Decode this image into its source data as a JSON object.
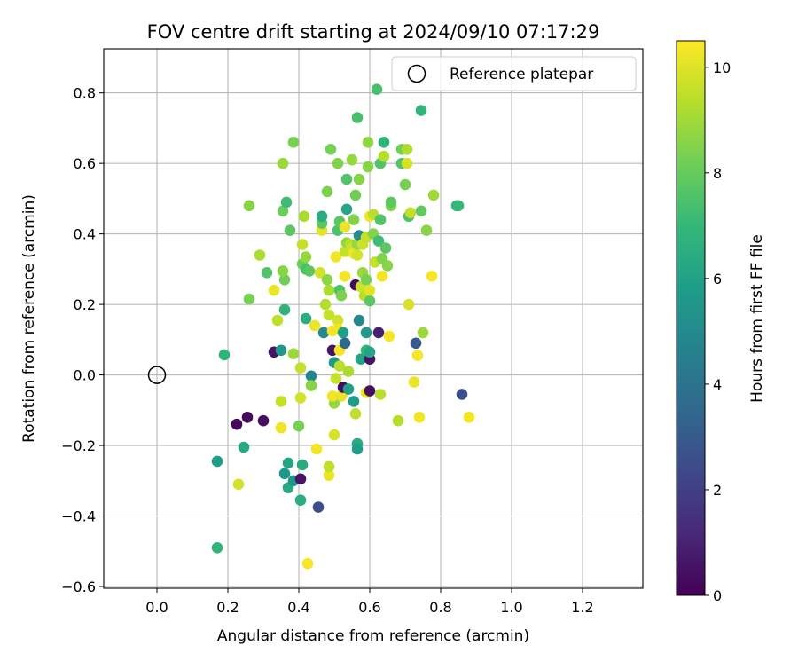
{
  "chart_data": {
    "type": "scatter",
    "title": "FOV centre drift starting at 2024/09/10 07:17:29",
    "xlabel": "Angular distance from reference (arcmin)",
    "ylabel": "Rotation from reference (arcmin)",
    "xlim": [
      -0.15,
      1.37
    ],
    "ylim": [
      -0.605,
      0.925
    ],
    "xticks": [
      0.0,
      0.2,
      0.4,
      0.6,
      0.8,
      1.0,
      1.2
    ],
    "xtick_labels": [
      "0.0",
      "0.2",
      "0.4",
      "0.6",
      "0.8",
      "1.0",
      "1.2"
    ],
    "yticks": [
      -0.6,
      -0.4,
      -0.2,
      0.0,
      0.2,
      0.4,
      0.6,
      0.8
    ],
    "ytick_labels": [
      "−0.6",
      "−0.4",
      "−0.2",
      "0.0",
      "0.2",
      "0.4",
      "0.6",
      "0.8"
    ],
    "grid": true,
    "legend": {
      "position": "top-right",
      "entries": [
        {
          "label": "Reference platepar",
          "marker": "open-circle"
        }
      ]
    },
    "reference_point": {
      "x": 0.0,
      "y": 0.0
    },
    "colorbar": {
      "label": "Hours from first FF file",
      "colormap": "viridis",
      "range": [
        0,
        10.5
      ],
      "ticks": [
        0,
        2,
        4,
        6,
        8,
        10
      ],
      "tick_labels": [
        "0",
        "2",
        "4",
        "6",
        "8",
        "10"
      ]
    },
    "series": [
      {
        "points": [
          [
            0.17,
            -0.245,
            5.8
          ],
          [
            0.17,
            -0.49,
            6.8
          ],
          [
            0.19,
            0.057,
            6.8
          ],
          [
            0.245,
            -0.205,
            6.3
          ],
          [
            0.225,
            -0.14,
            0.2
          ],
          [
            0.255,
            -0.12,
            0.3
          ],
          [
            0.3,
            -0.13,
            0.4
          ],
          [
            0.23,
            -0.31,
            9.8
          ],
          [
            0.26,
            0.215,
            8.3
          ],
          [
            0.26,
            0.48,
            8.6
          ],
          [
            0.29,
            0.34,
            9.2
          ],
          [
            0.31,
            0.29,
            7.6
          ],
          [
            0.33,
            0.24,
            10.2
          ],
          [
            0.34,
            0.155,
            9.5
          ],
          [
            0.33,
            0.065,
            0.6
          ],
          [
            0.35,
            0.07,
            5.6
          ],
          [
            0.35,
            -0.075,
            9.6
          ],
          [
            0.35,
            -0.15,
            10.3
          ],
          [
            0.36,
            0.185,
            6.8
          ],
          [
            0.36,
            0.27,
            8.2
          ],
          [
            0.355,
            0.295,
            8.6
          ],
          [
            0.355,
            0.465,
            8.1
          ],
          [
            0.365,
            0.49,
            7.2
          ],
          [
            0.355,
            0.6,
            8.9
          ],
          [
            0.385,
            0.66,
            8.3
          ],
          [
            0.375,
            0.41,
            7.8
          ],
          [
            0.36,
            -0.28,
            5.6
          ],
          [
            0.37,
            -0.25,
            6.1
          ],
          [
            0.37,
            -0.32,
            6.3
          ],
          [
            0.385,
            -0.3,
            5.5
          ],
          [
            0.385,
            0.06,
            8.9
          ],
          [
            0.4,
            -0.145,
            8.3
          ],
          [
            0.405,
            -0.295,
            0.6
          ],
          [
            0.41,
            -0.255,
            6.4
          ],
          [
            0.405,
            -0.355,
            6.5
          ],
          [
            0.405,
            -0.065,
            9.8
          ],
          [
            0.405,
            0.02,
            9.6
          ],
          [
            0.41,
            0.315,
            8.1
          ],
          [
            0.41,
            0.37,
            9.6
          ],
          [
            0.415,
            0.45,
            9.2
          ],
          [
            0.42,
            0.3,
            7.4
          ],
          [
            0.42,
            0.335,
            8.8
          ],
          [
            0.42,
            0.16,
            6.5
          ],
          [
            0.425,
            -0.535,
            10.4
          ],
          [
            0.43,
            0.295,
            7.8
          ],
          [
            0.435,
            -0.003,
            4.8
          ],
          [
            0.435,
            -0.03,
            8.6
          ],
          [
            0.445,
            0.14,
            10.2
          ],
          [
            0.45,
            -0.21,
            10.3
          ],
          [
            0.455,
            -0.375,
            2.5
          ],
          [
            0.46,
            0.29,
            9.8
          ],
          [
            0.465,
            0.41,
            10.1
          ],
          [
            0.465,
            0.43,
            7.8
          ],
          [
            0.465,
            0.45,
            6.5
          ],
          [
            0.47,
            0.12,
            4.9
          ],
          [
            0.475,
            0.2,
            9.3
          ],
          [
            0.48,
            0.52,
            8.4
          ],
          [
            0.48,
            0.27,
            8.7
          ],
          [
            0.485,
            0.24,
            9.2
          ],
          [
            0.485,
            0.17,
            9.6
          ],
          [
            0.485,
            -0.285,
            10.2
          ],
          [
            0.485,
            -0.26,
            9.5
          ],
          [
            0.49,
            0.64,
            8.3
          ],
          [
            0.495,
            0.07,
            0.6
          ],
          [
            0.495,
            0.125,
            10.4
          ],
          [
            0.5,
            -0.08,
            8.8
          ],
          [
            0.5,
            -0.17,
            9.9
          ],
          [
            0.5,
            0.035,
            5.5
          ],
          [
            0.495,
            -0.06,
            10.3
          ],
          [
            0.505,
            0.335,
            10.3
          ],
          [
            0.505,
            -0.01,
            9.6
          ],
          [
            0.51,
            0.41,
            7.5
          ],
          [
            0.51,
            0.6,
            8.5
          ],
          [
            0.51,
            0.155,
            9.8
          ],
          [
            0.51,
            0.13,
            10.3
          ],
          [
            0.515,
            0.24,
            7.5
          ],
          [
            0.515,
            0.07,
            10.4
          ],
          [
            0.515,
            0.025,
            9.4
          ],
          [
            0.515,
            0.435,
            7.8
          ],
          [
            0.52,
            0.225,
            8.4
          ],
          [
            0.52,
            -0.06,
            10.1
          ],
          [
            0.525,
            0.12,
            5.9
          ],
          [
            0.525,
            -0.05,
            10.2
          ],
          [
            0.525,
            -0.035,
            0.4
          ],
          [
            0.53,
            0.09,
            3.5
          ],
          [
            0.53,
            0.35,
            9.6
          ],
          [
            0.53,
            0.28,
            10.3
          ],
          [
            0.53,
            0.42,
            10.2
          ],
          [
            0.535,
            0.375,
            8.8
          ],
          [
            0.535,
            0.555,
            7.6
          ],
          [
            0.535,
            0.47,
            6.2
          ],
          [
            0.54,
            -0.04,
            5.9
          ],
          [
            0.54,
            0.01,
            9.2
          ],
          [
            0.545,
            0.37,
            9.3
          ],
          [
            0.55,
            0.36,
            9.7
          ],
          [
            0.55,
            0.61,
            8.8
          ],
          [
            0.555,
            -0.075,
            5.8
          ],
          [
            0.555,
            0.44,
            8.5
          ],
          [
            0.555,
            0.345,
            10.2
          ],
          [
            0.56,
            0.255,
            0.3
          ],
          [
            0.56,
            0.51,
            8.2
          ],
          [
            0.56,
            -0.11,
            9.5
          ],
          [
            0.565,
            0.73,
            7.4
          ],
          [
            0.565,
            0.37,
            8.8
          ],
          [
            0.565,
            0.34,
            9.8
          ],
          [
            0.565,
            -0.195,
            6.4
          ],
          [
            0.565,
            -0.21,
            5.9
          ],
          [
            0.57,
            0.395,
            5.1
          ],
          [
            0.57,
            0.155,
            4.9
          ],
          [
            0.57,
            0.555,
            8.6
          ],
          [
            0.575,
            0.25,
            9.7
          ],
          [
            0.575,
            0.045,
            6.1
          ],
          [
            0.58,
            0.29,
            8.9
          ],
          [
            0.58,
            0.37,
            9.7
          ],
          [
            0.585,
            0.225,
            9.4
          ],
          [
            0.59,
            0.39,
            9.6
          ],
          [
            0.59,
            0.07,
            6.9
          ],
          [
            0.59,
            0.12,
            5.6
          ],
          [
            0.59,
            0.27,
            8.3
          ],
          [
            0.59,
            -0.05,
            10.2
          ],
          [
            0.595,
            0.66,
            8.7
          ],
          [
            0.595,
            0.59,
            8.6
          ],
          [
            0.6,
            0.45,
            10.3
          ],
          [
            0.6,
            0.21,
            7.8
          ],
          [
            0.6,
            0.045,
            0.5
          ],
          [
            0.6,
            0.065,
            6.1
          ],
          [
            0.6,
            0.24,
            10.1
          ],
          [
            0.6,
            -0.045,
            0.4
          ],
          [
            0.61,
            0.455,
            9.4
          ],
          [
            0.61,
            0.4,
            8.5
          ],
          [
            0.615,
            0.32,
            9.6
          ],
          [
            0.62,
            0.81,
            7.4
          ],
          [
            0.625,
            0.12,
            0.9
          ],
          [
            0.625,
            0.38,
            7.2
          ],
          [
            0.63,
            0.6,
            7.6
          ],
          [
            0.63,
            0.44,
            7.6
          ],
          [
            0.63,
            -0.055,
            9.4
          ],
          [
            0.635,
            0.33,
            8.5
          ],
          [
            0.635,
            0.28,
            10.3
          ],
          [
            0.64,
            0.66,
            6.8
          ],
          [
            0.64,
            0.62,
            9.3
          ],
          [
            0.645,
            0.36,
            7.8
          ],
          [
            0.65,
            0.31,
            8.6
          ],
          [
            0.655,
            0.11,
            10.4
          ],
          [
            0.66,
            0.48,
            8.5
          ],
          [
            0.66,
            0.49,
            7.8
          ],
          [
            0.68,
            -0.13,
            9.3
          ],
          [
            0.69,
            0.64,
            8.2
          ],
          [
            0.69,
            0.6,
            7.6
          ],
          [
            0.7,
            0.54,
            8.3
          ],
          [
            0.705,
            0.64,
            9.2
          ],
          [
            0.705,
            0.6,
            9.8
          ],
          [
            0.71,
            0.45,
            7.5
          ],
          [
            0.71,
            0.2,
            9.9
          ],
          [
            0.715,
            0.46,
            9.5
          ],
          [
            0.725,
            -0.02,
            10.2
          ],
          [
            0.73,
            0.09,
            3.0
          ],
          [
            0.735,
            0.055,
            10.4
          ],
          [
            0.74,
            -0.12,
            10.3
          ],
          [
            0.745,
            0.75,
            6.9
          ],
          [
            0.745,
            0.465,
            7.9
          ],
          [
            0.75,
            0.12,
            8.9
          ],
          [
            0.76,
            0.41,
            8.6
          ],
          [
            0.775,
            0.28,
            10.4
          ],
          [
            0.78,
            0.51,
            9.0
          ],
          [
            0.845,
            0.48,
            6.8
          ],
          [
            0.85,
            0.48,
            7.0
          ],
          [
            0.86,
            -0.055,
            2.5
          ],
          [
            0.88,
            -0.12,
            10.3
          ]
        ]
      }
    ]
  }
}
